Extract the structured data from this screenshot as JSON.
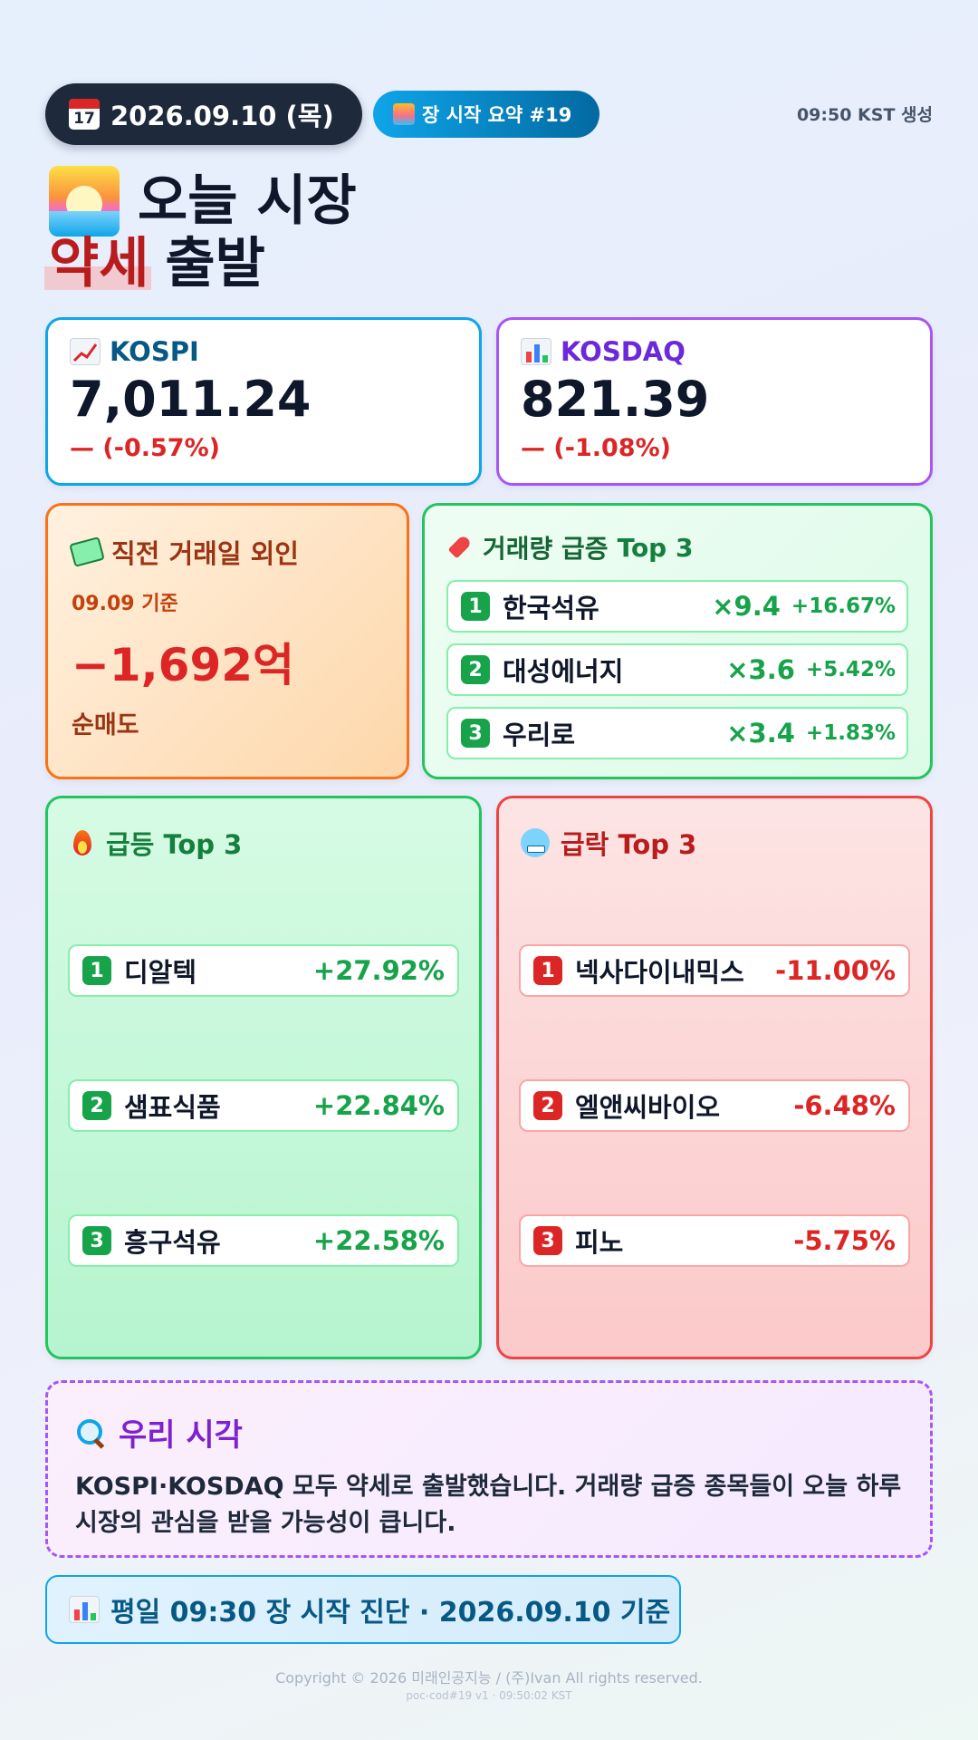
{
  "header": {
    "date": "2026.09.10 (목)",
    "summary_badge": "장 시작 요약 #19",
    "generated_time": "09:50 KST 생성",
    "calendar_icon_text": "17"
  },
  "title": {
    "line1": "오늘 시장",
    "highlight": "약세",
    "line2_rest": "출발"
  },
  "indices": {
    "kospi": {
      "name": "KOSPI",
      "value": "7,011.24",
      "change": "— (-0.57%)"
    },
    "kosdaq": {
      "name": "KOSDAQ",
      "value": "821.39",
      "change": "— (-1.08%)"
    }
  },
  "foreign": {
    "title": "직전 거래일 외인",
    "date_basis": "09.09 기준",
    "value": "−1,692억",
    "label": "순매도"
  },
  "volume_surge": {
    "title_prefix": "거래량 급증",
    "title_top": "Top 3",
    "items": [
      {
        "rank": "1",
        "name": "한국석유",
        "multiple": "×9.4",
        "pct": "+16.67%"
      },
      {
        "rank": "2",
        "name": "대성에너지",
        "multiple": "×3.6",
        "pct": "+5.42%"
      },
      {
        "rank": "3",
        "name": "우리로",
        "multiple": "×3.4",
        "pct": "+1.83%"
      }
    ]
  },
  "gainers": {
    "title": "급등 Top 3",
    "items": [
      {
        "rank": "1",
        "name": "디알텍",
        "pct": "+27.92%"
      },
      {
        "rank": "2",
        "name": "샘표식품",
        "pct": "+22.84%"
      },
      {
        "rank": "3",
        "name": "흥구석유",
        "pct": "+22.58%"
      }
    ]
  },
  "losers": {
    "title": "급락 Top 3",
    "items": [
      {
        "rank": "1",
        "name": "넥사다이내믹스",
        "pct": "-11.00%"
      },
      {
        "rank": "2",
        "name": "엘앤씨바이오",
        "pct": "-6.48%"
      },
      {
        "rank": "3",
        "name": "피노",
        "pct": "-5.75%"
      }
    ]
  },
  "our_view": {
    "title": "우리 시각",
    "text_bold": "KOSPI·KOSDAQ",
    "text_rest": " 모두 약세로 출발했습니다. 거래량 급증 종목들이 오늘 하루 시장의 관심을 받을 가능성이 큽니다."
  },
  "diagnosis": {
    "text": "평일 09:30 장 시작 진단 · 2026.09.10 기준"
  },
  "footer": {
    "copyright": "Copyright © 2026 미래인공지능 / (주)Ivan All rights reserved.",
    "version": "poc-cod#19 v1 · 09:50:02 KST"
  },
  "colors": {
    "up": "#16a34a",
    "down": "#dc2626",
    "kospi_accent": "#0ea5e9",
    "kosdaq_accent": "#a855f7",
    "header_dark": "#1e293b"
  }
}
